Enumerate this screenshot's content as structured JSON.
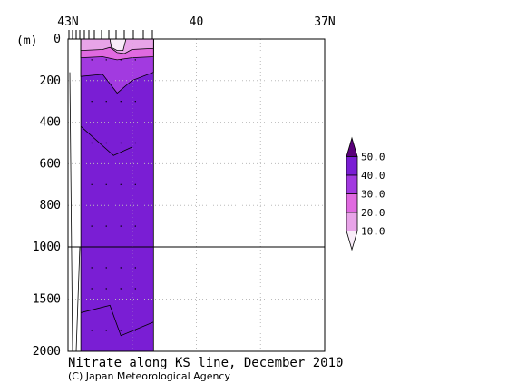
{
  "chart_data": {
    "type": "heatmap",
    "title": "Nitrate along KS line, December 2010",
    "credit": "(C) Japan Meteorological Agency",
    "ylabel_unit": "(m)",
    "x_ticks": [
      "43N",
      "40",
      "37N"
    ],
    "x_range": [
      43,
      37
    ],
    "y_ticks_upper": [
      "0",
      "200",
      "400",
      "600",
      "800",
      "1000"
    ],
    "y_ticks_lower": [
      "1500",
      "2000"
    ],
    "y_upper_range": [
      0,
      1000
    ],
    "y_lower_range": [
      1000,
      2000
    ],
    "data_extent_lat": [
      42.7,
      41.0
    ],
    "colorbar": {
      "labels": [
        "50.0",
        "40.0",
        "30.0",
        "20.0",
        "10.0"
      ],
      "levels": [
        {
          "range": [
            50,
            60
          ],
          "color": "#5a007a"
        },
        {
          "range": [
            40,
            50
          ],
          "color": "#7a1ed4"
        },
        {
          "range": [
            30,
            40
          ],
          "color": "#a23ae0"
        },
        {
          "range": [
            20,
            30
          ],
          "color": "#e06ae0"
        },
        {
          "range": [
            10,
            20
          ],
          "color": "#e8a4e8"
        },
        {
          "range": [
            0,
            10
          ],
          "color": "#f8ecf8"
        }
      ]
    },
    "layers": [
      {
        "range": [
          0,
          10
        ],
        "color": "#f8ecf8",
        "top": [
          [
            0,
            0
          ],
          [
            1,
            0
          ]
        ],
        "depth": [
          [
            0.0,
            0
          ],
          [
            0.4,
            0
          ],
          [
            0.42,
            40
          ],
          [
            0.5,
            55
          ],
          [
            0.58,
            55
          ],
          [
            0.62,
            0
          ],
          [
            1.0,
            0
          ]
        ]
      },
      {
        "range": [
          10,
          20
        ],
        "color": "#e8a4e8",
        "depth": [
          [
            0.0,
            55
          ],
          [
            0.3,
            50
          ],
          [
            0.4,
            40
          ],
          [
            0.5,
            65
          ],
          [
            0.6,
            70
          ],
          [
            0.7,
            50
          ],
          [
            1.0,
            45
          ]
        ]
      },
      {
        "range": [
          20,
          30
        ],
        "color": "#e06ae0",
        "depth": [
          [
            0.0,
            90
          ],
          [
            0.3,
            85
          ],
          [
            0.5,
            100
          ],
          [
            0.7,
            90
          ],
          [
            1.0,
            85
          ]
        ]
      },
      {
        "range": [
          30,
          40
        ],
        "color": "#a23ae0",
        "depth": [
          [
            0.0,
            180
          ],
          [
            0.3,
            170
          ],
          [
            0.5,
            260
          ],
          [
            0.7,
            200
          ],
          [
            1.0,
            160
          ]
        ]
      },
      {
        "range": [
          40,
          50
        ],
        "color": "#7a1ed4",
        "depth": [
          [
            0.0,
            2000
          ],
          [
            1.0,
            2000
          ]
        ]
      }
    ]
  }
}
